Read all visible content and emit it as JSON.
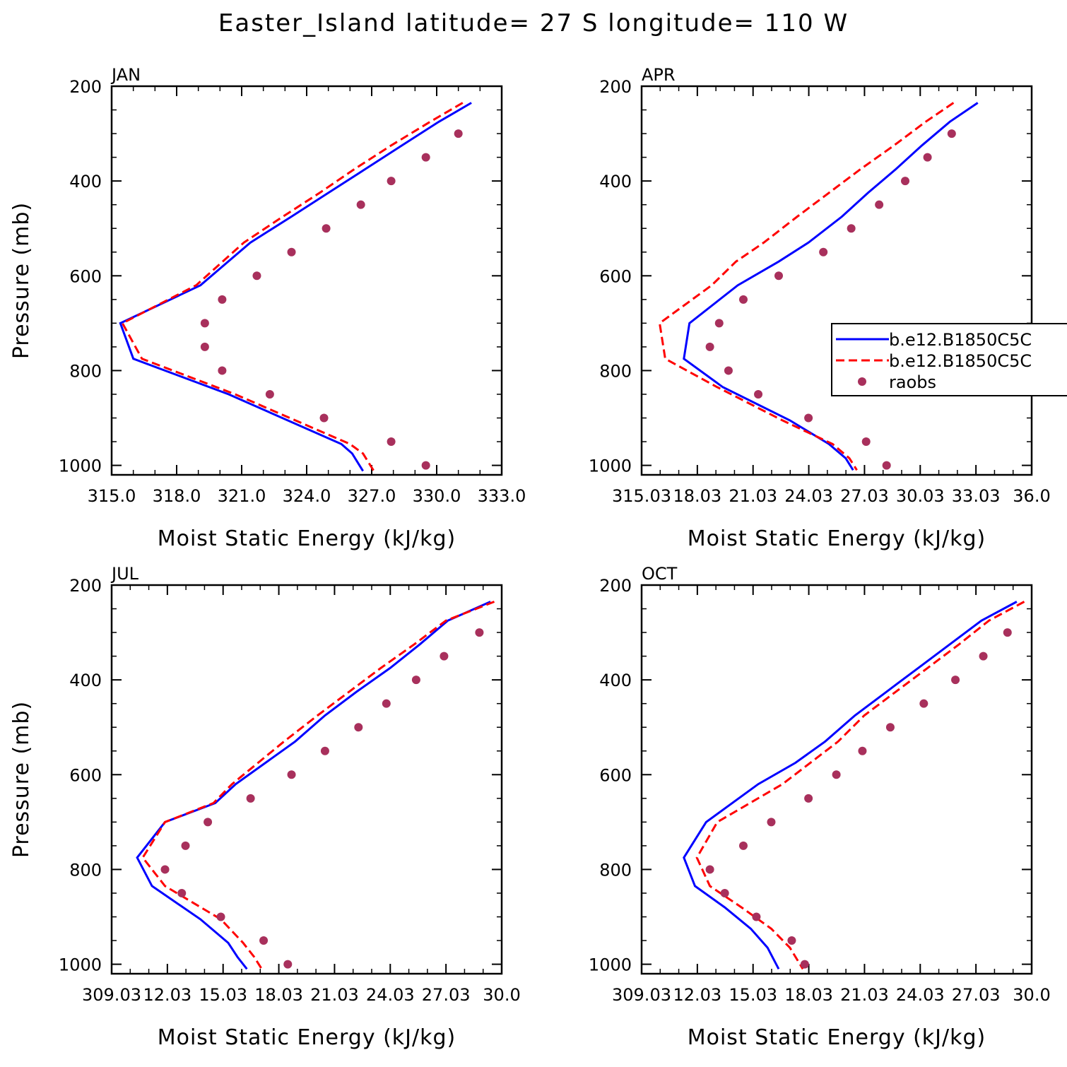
{
  "title": "Easter_Island  latitude= 27 S longitude= 110 W",
  "legend": {
    "entries": [
      {
        "label": "b.e12.B1850C5C",
        "color": "#0000ff",
        "style": "solid"
      },
      {
        "label": "b.e12.B1850C5C",
        "color": "#ff0000",
        "style": "dashed"
      },
      {
        "label": "raobs",
        "color": "#a8305c",
        "style": "dot"
      }
    ]
  },
  "chart_data": [
    {
      "type": "line",
      "panel_title": "JAN",
      "xlabel": "Moist Static Energy (kJ/kg)",
      "ylabel": "Pressure (mb)",
      "xlim": [
        315.0,
        333.0
      ],
      "ylim": [
        1020,
        200
      ],
      "xticks": [
        "315.0",
        "318.0",
        "321.0",
        "324.0",
        "327.0",
        "330.0",
        "333.0"
      ],
      "yticks": [
        "200",
        "400",
        "600",
        "800",
        "1000"
      ],
      "series": [
        {
          "name": "b.e12.B1850C5C",
          "color": "#0000ff",
          "style": "solid",
          "x": [
            331.6,
            330.1,
            328.4,
            326.7,
            325.0,
            323.3,
            321.4,
            319.1,
            315.4,
            316.0,
            320.4,
            325.6,
            326.1,
            326.6
          ],
          "y": [
            235,
            275,
            325,
            375,
            425,
            475,
            530,
            620,
            700,
            775,
            850,
            955,
            975,
            1012
          ]
        },
        {
          "name": "b.e12.B1850C5C",
          "color": "#ff0000",
          "style": "dashed",
          "x": [
            331.2,
            329.7,
            327.9,
            326.2,
            324.6,
            322.9,
            321.1,
            318.9,
            315.5,
            316.4,
            320.7,
            326.0,
            326.6,
            327.1
          ],
          "y": [
            235,
            275,
            325,
            375,
            425,
            475,
            530,
            620,
            700,
            775,
            850,
            955,
            975,
            1012
          ]
        },
        {
          "name": "raobs",
          "color": "#a8305c",
          "style": "dot",
          "x": [
            331.0,
            329.5,
            327.9,
            326.5,
            324.9,
            323.3,
            321.7,
            320.1,
            319.3,
            319.3,
            320.1,
            322.3,
            324.8,
            327.9,
            329.5
          ],
          "y": [
            300,
            350,
            400,
            450,
            500,
            550,
            600,
            650,
            700,
            750,
            800,
            850,
            900,
            950,
            1000
          ]
        }
      ]
    },
    {
      "type": "line",
      "panel_title": "APR",
      "xlabel": "Moist Static Energy (kJ/kg)",
      "ylabel": "",
      "xlim": [
        315.03,
        336.0
      ],
      "ylim": [
        1020,
        200
      ],
      "xticks": [
        "315.03",
        "18.03",
        "21.03",
        "24.03",
        "27.03",
        "30.03",
        "33.03",
        "36.0"
      ],
      "yticks": [
        "200",
        "400",
        "600",
        "800",
        "1000"
      ],
      "series": [
        {
          "name": "b.e12.B1850C5C",
          "color": "#0000ff",
          "style": "solid",
          "x": [
            333.1,
            331.6,
            330.1,
            328.7,
            327.2,
            325.8,
            324.0,
            322.4,
            320.2,
            317.6,
            317.3,
            319.4,
            323.0,
            325.1,
            326.0,
            326.4
          ],
          "y": [
            235,
            275,
            325,
            375,
            425,
            475,
            530,
            570,
            620,
            700,
            775,
            835,
            905,
            955,
            985,
            1010
          ]
        },
        {
          "name": "b.e12.B1850C5C",
          "color": "#ff0000",
          "style": "dashed",
          "x": [
            331.8,
            330.3,
            328.6,
            326.8,
            325.1,
            323.4,
            321.6,
            320.1,
            318.8,
            316.0,
            316.3,
            319.1,
            322.6,
            325.3,
            326.2,
            326.6
          ],
          "y": [
            235,
            275,
            325,
            375,
            425,
            475,
            530,
            570,
            620,
            700,
            775,
            835,
            905,
            955,
            985,
            1010
          ]
        },
        {
          "name": "raobs",
          "color": "#a8305c",
          "style": "dot",
          "x": [
            331.7,
            330.4,
            329.2,
            327.8,
            326.3,
            324.8,
            322.4,
            320.5,
            319.2,
            318.7,
            319.7,
            321.3,
            324.0,
            327.1,
            328.2
          ],
          "y": [
            300,
            350,
            400,
            450,
            500,
            550,
            600,
            650,
            700,
            750,
            800,
            850,
            900,
            950,
            1000
          ]
        }
      ]
    },
    {
      "type": "line",
      "panel_title": "JUL",
      "xlabel": "Moist Static Energy (kJ/kg)",
      "ylabel": "Pressure (mb)",
      "xlim": [
        309.03,
        330.0
      ],
      "ylim": [
        1020,
        200
      ],
      "xticks": [
        "309.03",
        "12.03",
        "15.03",
        "18.03",
        "21.03",
        "24.03",
        "27.03",
        "30.0"
      ],
      "yticks": [
        "200",
        "400",
        "600",
        "800",
        "1000"
      ],
      "series": [
        {
          "name": "b.e12.B1850C5C",
          "color": "#0000ff",
          "style": "solid",
          "x": [
            329.4,
            327.1,
            325.6,
            324.0,
            322.2,
            320.5,
            318.9,
            317.3,
            315.7,
            314.6,
            311.9,
            310.4,
            311.2,
            313.8,
            315.3,
            315.8,
            316.3
          ],
          "y": [
            235,
            275,
            325,
            375,
            425,
            475,
            530,
            575,
            620,
            660,
            700,
            775,
            835,
            905,
            955,
            985,
            1010
          ]
        },
        {
          "name": "b.e12.B1850C5C",
          "color": "#ff0000",
          "style": "dashed",
          "x": [
            329.6,
            327.0,
            325.3,
            323.5,
            321.8,
            320.1,
            318.3,
            316.9,
            315.5,
            314.5,
            311.9,
            310.7,
            311.9,
            314.9,
            316.1,
            316.7,
            317.1
          ],
          "y": [
            235,
            275,
            325,
            375,
            425,
            475,
            530,
            575,
            620,
            660,
            700,
            775,
            835,
            905,
            955,
            985,
            1010
          ]
        },
        {
          "name": "raobs",
          "color": "#a8305c",
          "style": "dot",
          "x": [
            328.8,
            326.9,
            325.4,
            323.8,
            322.3,
            320.5,
            318.7,
            316.5,
            314.2,
            313.0,
            311.9,
            312.8,
            314.9,
            317.2,
            318.5
          ],
          "y": [
            300,
            350,
            400,
            450,
            500,
            550,
            600,
            650,
            700,
            750,
            800,
            850,
            900,
            950,
            1000
          ]
        }
      ]
    },
    {
      "type": "line",
      "panel_title": "OCT",
      "xlabel": "Moist Static Energy (kJ/kg)",
      "ylabel": "",
      "xlim": [
        309.03,
        330.0
      ],
      "ylim": [
        1020,
        200
      ],
      "xticks": [
        "309.03",
        "12.03",
        "15.03",
        "18.03",
        "21.03",
        "24.03",
        "27.03",
        "30.0"
      ],
      "yticks": [
        "200",
        "400",
        "600",
        "800",
        "1000"
      ],
      "series": [
        {
          "name": "b.e12.B1850C5C",
          "color": "#0000ff",
          "style": "solid",
          "x": [
            329.2,
            327.3,
            325.6,
            323.9,
            322.2,
            320.5,
            318.9,
            317.3,
            315.3,
            312.5,
            311.3,
            311.9,
            313.5,
            314.9,
            315.8,
            316.4
          ],
          "y": [
            235,
            275,
            325,
            375,
            425,
            475,
            530,
            575,
            620,
            700,
            775,
            835,
            880,
            925,
            965,
            1010
          ]
        },
        {
          "name": "b.e12.B1850C5C",
          "color": "#ff0000",
          "style": "dashed",
          "x": [
            329.6,
            327.7,
            326.1,
            324.4,
            322.7,
            321.0,
            319.6,
            318.1,
            316.6,
            313.1,
            312.0,
            312.7,
            314.4,
            316.0,
            317.0,
            317.7
          ],
          "y": [
            235,
            275,
            325,
            375,
            425,
            475,
            530,
            575,
            620,
            700,
            775,
            835,
            880,
            925,
            965,
            1010
          ]
        },
        {
          "name": "raobs",
          "color": "#a8305c",
          "style": "dot",
          "x": [
            328.7,
            327.4,
            325.9,
            324.2,
            322.4,
            320.9,
            319.5,
            318.0,
            316.0,
            314.5,
            312.7,
            313.5,
            315.2,
            317.1,
            317.8
          ],
          "y": [
            300,
            350,
            400,
            450,
            500,
            550,
            600,
            650,
            700,
            750,
            800,
            850,
            900,
            950,
            1000
          ]
        }
      ]
    }
  ]
}
